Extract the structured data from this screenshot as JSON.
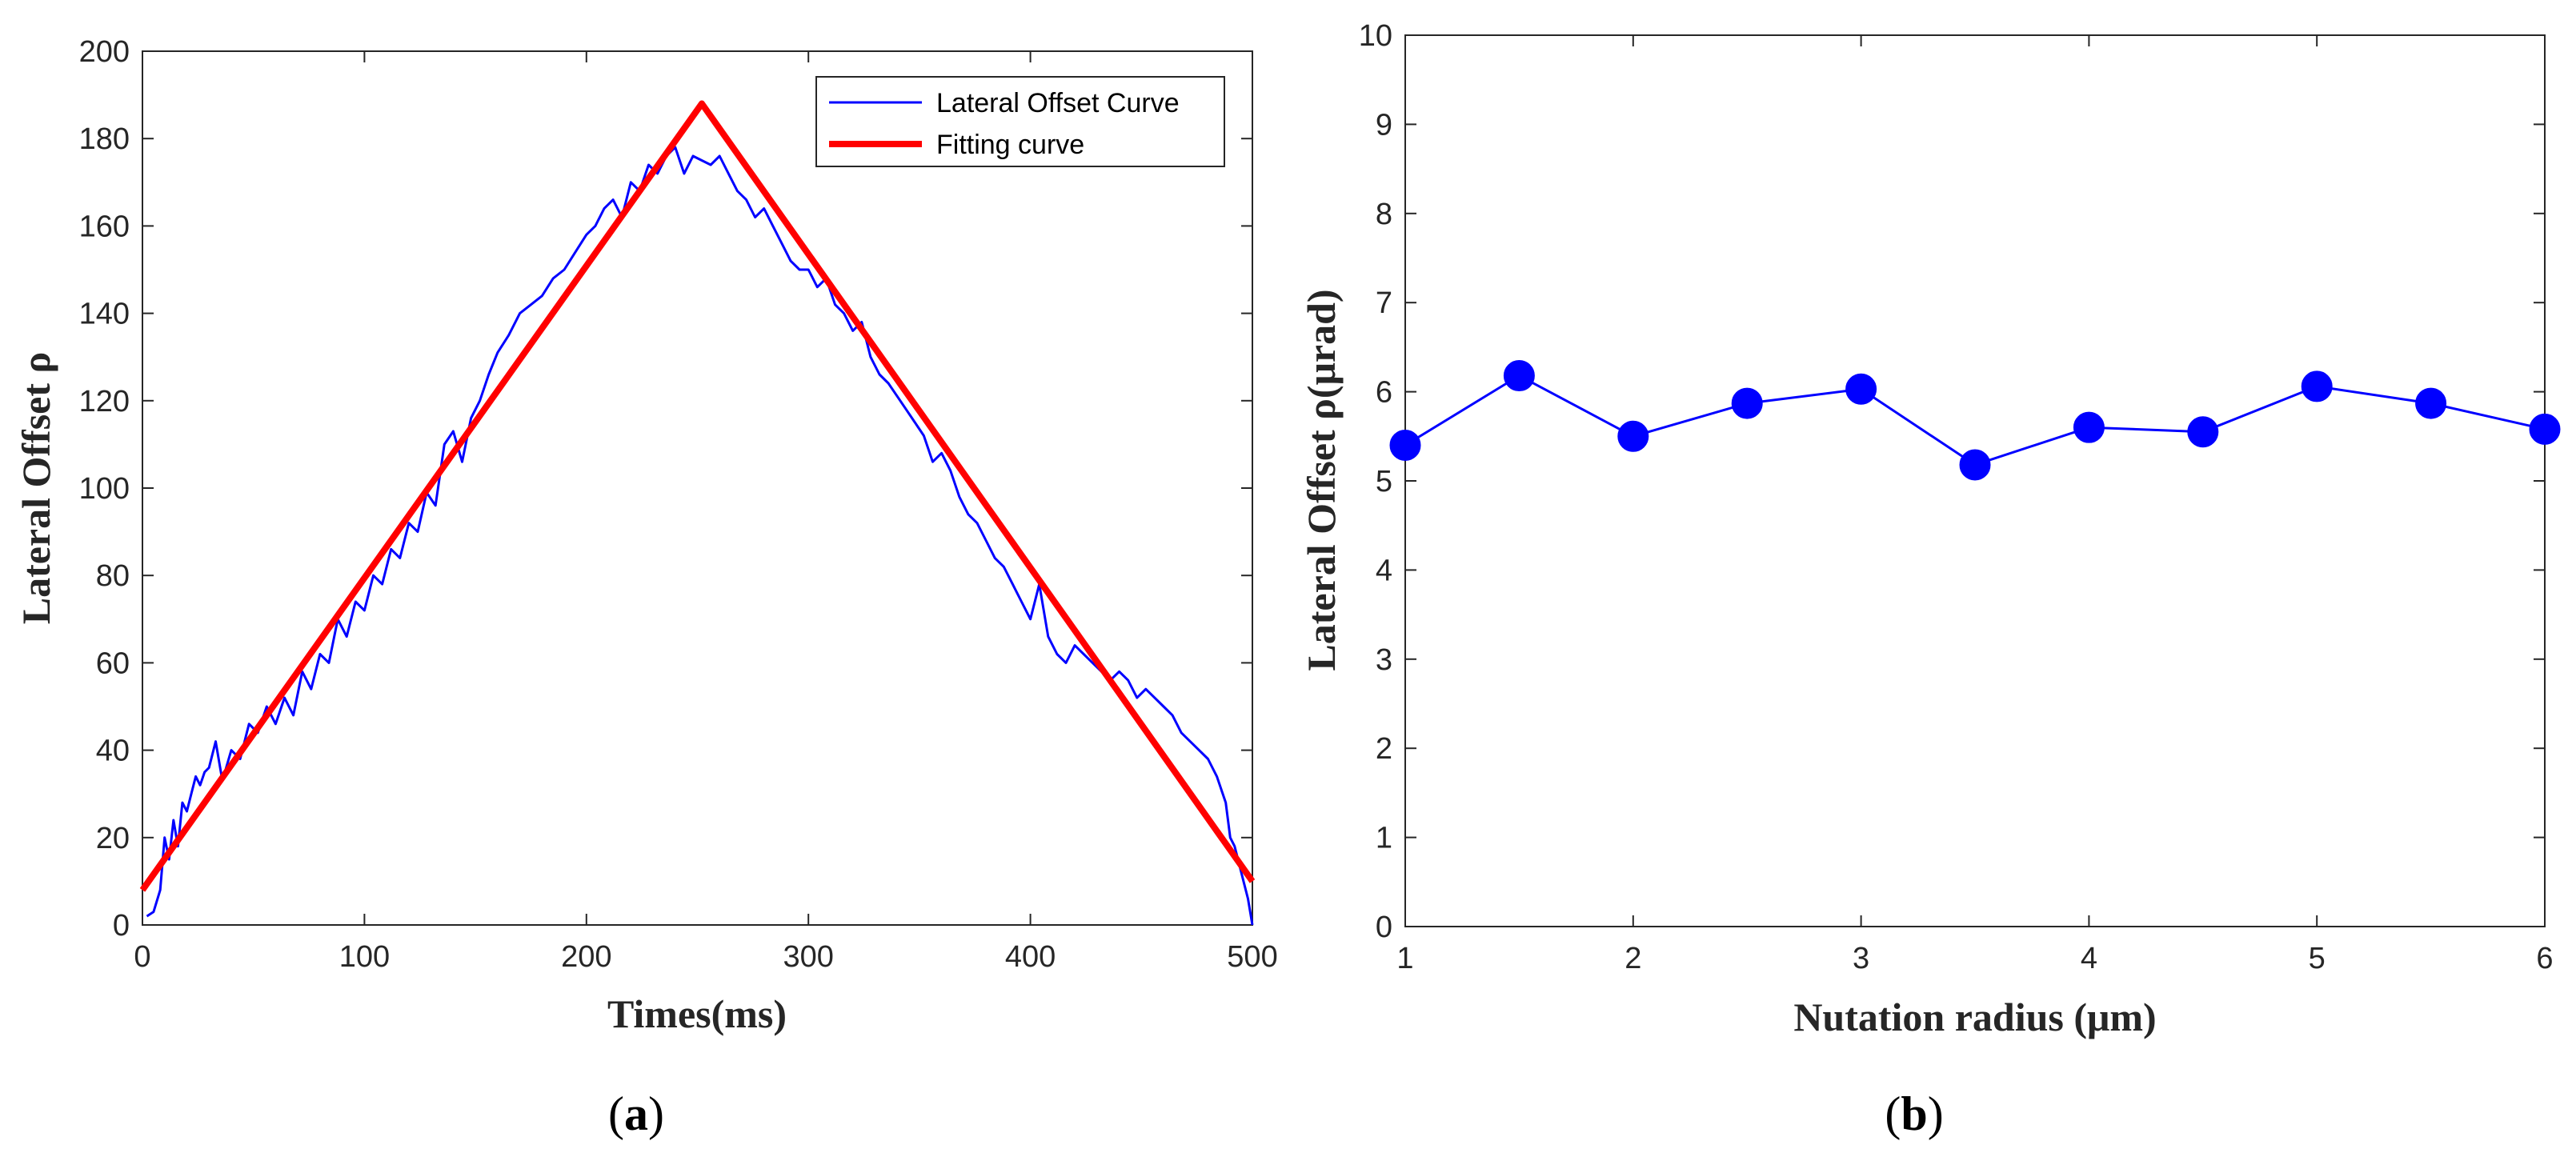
{
  "chart_data": [
    {
      "type": "line",
      "panel": "a",
      "caption_open": "(",
      "caption_letter": "a",
      "caption_close": ")",
      "xlabel": "Times(ms)",
      "ylabel": "Lateral Offset ρ",
      "xlim": [
        0,
        500
      ],
      "ylim": [
        0,
        200
      ],
      "xticks": [
        "0",
        "100",
        "200",
        "300",
        "400",
        "500"
      ],
      "yticks": [
        "0",
        "20",
        "40",
        "60",
        "80",
        "100",
        "120",
        "140",
        "160",
        "180",
        "200"
      ],
      "legend_position": "top-right",
      "series": [
        {
          "name": "Lateral Offset Curve",
          "color": "#0000ff",
          "x": [
            2,
            5,
            8,
            10,
            12,
            14,
            16,
            18,
            20,
            22,
            24,
            26,
            28,
            30,
            33,
            36,
            40,
            44,
            48,
            52,
            56,
            60,
            64,
            68,
            72,
            76,
            80,
            84,
            88,
            92,
            96,
            100,
            104,
            108,
            112,
            116,
            120,
            124,
            128,
            132,
            136,
            140,
            144,
            148,
            152,
            156,
            160,
            165,
            170,
            175,
            180,
            185,
            190,
            195,
            200,
            204,
            208,
            212,
            216,
            220,
            224,
            228,
            232,
            236,
            240,
            244,
            248,
            252,
            256,
            260,
            264,
            268,
            272,
            276,
            280,
            284,
            288,
            292,
            296,
            300,
            304,
            308,
            312,
            316,
            320,
            324,
            328,
            332,
            336,
            340,
            344,
            348,
            352,
            356,
            360,
            364,
            368,
            372,
            376,
            380,
            384,
            388,
            392,
            396,
            400,
            404,
            408,
            412,
            416,
            420,
            424,
            428,
            432,
            436,
            440,
            444,
            448,
            452,
            456,
            460,
            464,
            468,
            472,
            476,
            480,
            484,
            488,
            490,
            492,
            494,
            496,
            498,
            500
          ],
          "y": [
            2,
            3,
            8,
            20,
            15,
            24,
            18,
            28,
            26,
            30,
            34,
            32,
            35,
            36,
            42,
            33,
            40,
            38,
            46,
            44,
            50,
            46,
            52,
            48,
            58,
            54,
            62,
            60,
            70,
            66,
            74,
            72,
            80,
            78,
            86,
            84,
            92,
            90,
            99,
            96,
            110,
            113,
            106,
            116,
            120,
            126,
            131,
            135,
            140,
            142,
            144,
            148,
            150,
            154,
            158,
            160,
            164,
            166,
            162,
            170,
            168,
            174,
            172,
            176,
            178,
            172,
            176,
            175,
            174,
            176,
            172,
            168,
            166,
            162,
            164,
            160,
            156,
            152,
            150,
            150,
            146,
            148,
            142,
            140,
            136,
            138,
            130,
            126,
            124,
            121,
            118,
            115,
            112,
            106,
            108,
            104,
            98,
            94,
            92,
            88,
            84,
            82,
            78,
            74,
            70,
            78,
            66,
            62,
            60,
            64,
            62,
            60,
            58,
            56,
            58,
            56,
            52,
            54,
            52,
            50,
            48,
            44,
            42,
            40,
            38,
            34,
            28,
            20,
            18,
            14,
            10,
            6,
            0
          ]
        },
        {
          "name": "Fitting curve",
          "color": "#ff0000",
          "x": [
            0,
            252,
            500
          ],
          "y": [
            8,
            188,
            10
          ]
        }
      ]
    },
    {
      "type": "line",
      "panel": "b",
      "caption_open": "(",
      "caption_letter": "b",
      "caption_close": ")",
      "xlabel": "Nutation radius (μm)",
      "ylabel": "Lateral Offset ρ(μrad)",
      "xlim": [
        1,
        6
      ],
      "ylim": [
        0,
        10
      ],
      "xticks": [
        "1",
        "2",
        "3",
        "4",
        "5",
        "6"
      ],
      "yticks": [
        "0",
        "1",
        "2",
        "3",
        "4",
        "5",
        "6",
        "7",
        "8",
        "9",
        "10"
      ],
      "series": [
        {
          "name": "",
          "color": "#0000ff",
          "marker": "circle",
          "x": [
            1,
            1.5,
            2,
            2.5,
            3,
            3.5,
            4,
            4.5,
            5,
            5.5,
            6
          ],
          "y": [
            5.4,
            6.18,
            5.5,
            5.87,
            6.03,
            5.18,
            5.6,
            5.55,
            6.06,
            5.87,
            5.58
          ]
        }
      ]
    }
  ]
}
